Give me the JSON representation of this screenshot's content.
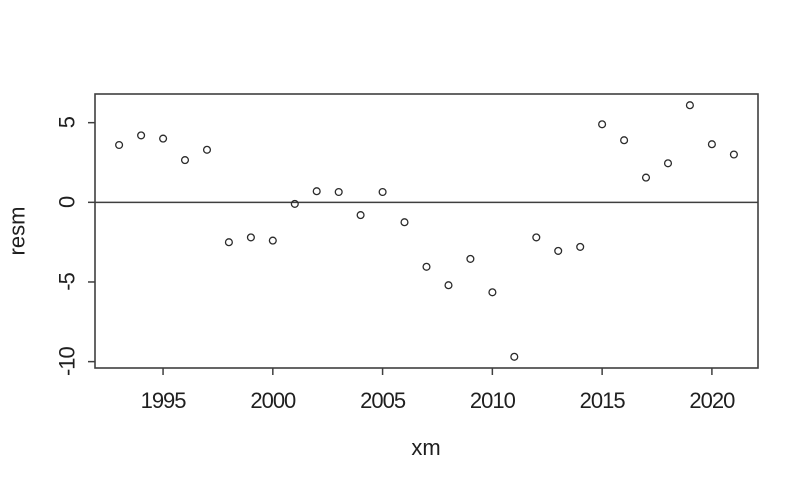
{
  "chart_data": {
    "type": "scatter",
    "title": "",
    "xlabel": "xm",
    "ylabel": "resm",
    "x": [
      1993,
      1994,
      1995,
      1996,
      1997,
      1998,
      1999,
      2000,
      2001,
      2002,
      2003,
      2004,
      2005,
      2006,
      2007,
      2008,
      2009,
      2010,
      2011,
      2012,
      2013,
      2014,
      2015,
      2016,
      2017,
      2018,
      2019,
      2020,
      2021
    ],
    "y": [
      3.6,
      4.2,
      4.0,
      2.65,
      3.3,
      -2.5,
      -2.2,
      -2.4,
      -0.1,
      0.7,
      0.65,
      -0.8,
      0.65,
      -1.25,
      -4.05,
      -5.2,
      -3.55,
      -5.65,
      -9.7,
      -2.2,
      -3.05,
      -2.8,
      4.9,
      3.9,
      1.55,
      2.45,
      6.1,
      3.65,
      3.0
    ],
    "xlim": [
      1991.9,
      2022.1
    ],
    "ylim": [
      -10.4,
      6.8
    ],
    "xticks": [
      1995,
      2000,
      2005,
      2010,
      2015,
      2020
    ],
    "yticks": [
      -10,
      -5,
      0,
      5
    ],
    "grid": false,
    "legend": null,
    "reference_line_y": 0,
    "point_style": "open-circle",
    "colors": {
      "points": "#2b2b2b",
      "axis": "#3f3f3f",
      "reference_line": "#3f3f3f",
      "text": "#1f1f1f",
      "background": "#ffffff"
    }
  }
}
